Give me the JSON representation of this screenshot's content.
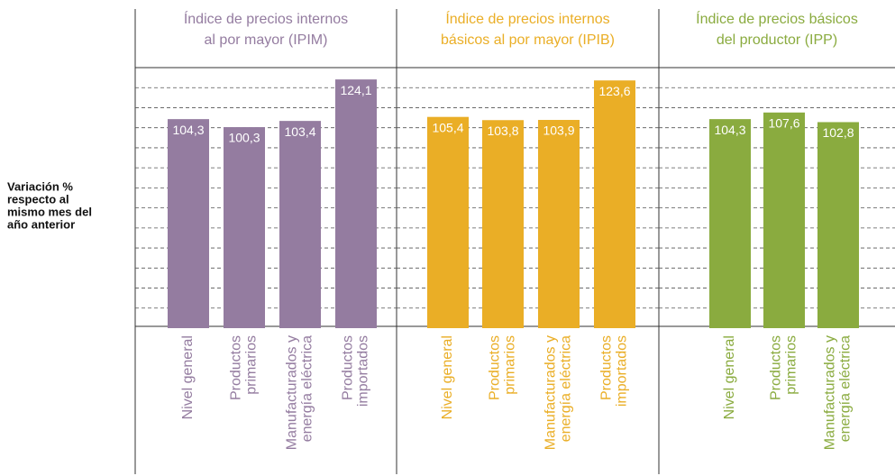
{
  "y_label": [
    "Variación %",
    "respecto al",
    "mismo mes del",
    "año anterior"
  ],
  "chart_data": [
    {
      "type": "bar",
      "title": [
        "Índice de precios internos",
        "al por mayor (IPIM)"
      ],
      "color": "#947ca0",
      "categories": [
        [
          "Nivel general"
        ],
        [
          "Productos",
          "primarios"
        ],
        [
          "Manufacturados y",
          "energía eléctrica"
        ],
        [
          "Productos",
          "importados"
        ]
      ],
      "values": [
        104.3,
        100.3,
        103.4,
        124.1
      ],
      "value_labels": [
        "104,3",
        "100,3",
        "103,4",
        "124,1"
      ],
      "ylim": [
        0,
        130
      ],
      "yticks": [
        10,
        20,
        30,
        40,
        50,
        60,
        70,
        80,
        90,
        100,
        110,
        120
      ],
      "grid": true
    },
    {
      "type": "bar",
      "title": [
        "Índice de precios internos",
        "básicos al por mayor (IPIB)"
      ],
      "color": "#eaae26",
      "categories": [
        [
          "Nivel general"
        ],
        [
          "Productos",
          "primarios"
        ],
        [
          "Manufacturados y",
          "energía eléctrica"
        ],
        [
          "Productos",
          "importados"
        ]
      ],
      "values": [
        105.4,
        103.8,
        103.9,
        123.6
      ],
      "value_labels": [
        "105,4",
        "103,8",
        "103,9",
        "123,6"
      ],
      "ylim": [
        0,
        130
      ],
      "yticks": [
        10,
        20,
        30,
        40,
        50,
        60,
        70,
        80,
        90,
        100,
        110,
        120
      ],
      "grid": true
    },
    {
      "type": "bar",
      "title": [
        "Índice de precios básicos",
        "del productor (IPP)"
      ],
      "color": "#8aab3f",
      "categories": [
        [
          "Nivel general"
        ],
        [
          "Productos",
          "primarios"
        ],
        [
          "Manufacturados y",
          "energía eléctrica"
        ]
      ],
      "values": [
        104.3,
        107.6,
        102.8
      ],
      "value_labels": [
        "104,3",
        "107,6",
        "102,8"
      ],
      "ylim": [
        0,
        130
      ],
      "yticks": [
        10,
        20,
        30,
        40,
        50,
        60,
        70,
        80,
        90,
        100,
        110,
        120
      ],
      "grid": true
    }
  ]
}
